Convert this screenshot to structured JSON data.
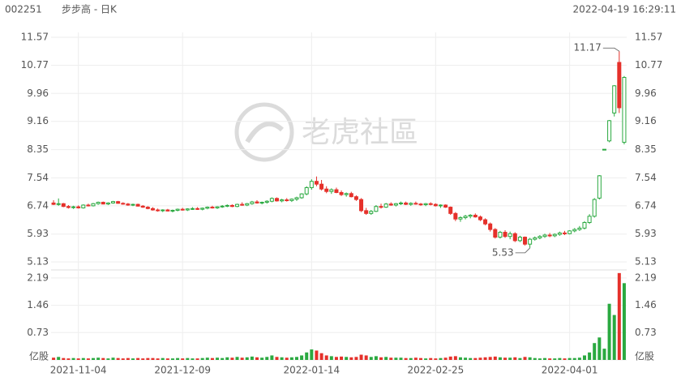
{
  "header": {
    "code": "002251",
    "name": "步步高 - 日K",
    "time": "2022-04-19 16:29:11"
  },
  "watermark": "老虎社區",
  "chart_data": {
    "type": "candlestick",
    "up_color": "#2aa940",
    "down_color": "#e5302a",
    "xlim": [
      -0.5,
      115.5
    ],
    "xticks": [
      {
        "value": 5,
        "label": "2021-11-04"
      },
      {
        "value": 26,
        "label": "2021-12-09"
      },
      {
        "value": 52,
        "label": "2022-01-14"
      },
      {
        "value": 77,
        "label": "2022-02-25"
      },
      {
        "value": 104,
        "label": "2022-04-01"
      }
    ],
    "ylim": [
      4.97,
      11.71
    ],
    "yticks": [
      5.13,
      5.93,
      6.74,
      7.54,
      8.35,
      9.16,
      9.96,
      10.77,
      11.57
    ],
    "high_label": "11.17",
    "low_label": "5.53",
    "ohlc": [
      [
        6.82,
        6.9,
        6.76,
        6.78
      ],
      [
        6.78,
        6.95,
        6.74,
        6.8
      ],
      [
        6.8,
        6.82,
        6.7,
        6.72
      ],
      [
        6.72,
        6.76,
        6.66,
        6.69
      ],
      [
        6.69,
        6.74,
        6.65,
        6.71
      ],
      [
        6.71,
        6.75,
        6.66,
        6.68
      ],
      [
        6.68,
        6.78,
        6.66,
        6.76
      ],
      [
        6.76,
        6.8,
        6.72,
        6.74
      ],
      [
        6.74,
        6.82,
        6.72,
        6.8
      ],
      [
        6.8,
        6.86,
        6.77,
        6.84
      ],
      [
        6.84,
        6.86,
        6.78,
        6.79
      ],
      [
        6.79,
        6.84,
        6.76,
        6.82
      ],
      [
        6.82,
        6.88,
        6.8,
        6.86
      ],
      [
        6.86,
        6.88,
        6.8,
        6.81
      ],
      [
        6.81,
        6.84,
        6.77,
        6.79
      ],
      [
        6.79,
        6.82,
        6.74,
        6.76
      ],
      [
        6.76,
        6.8,
        6.73,
        6.78
      ],
      [
        6.78,
        6.8,
        6.72,
        6.73
      ],
      [
        6.73,
        6.76,
        6.68,
        6.7
      ],
      [
        6.7,
        6.73,
        6.64,
        6.66
      ],
      [
        6.66,
        6.7,
        6.6,
        6.62
      ],
      [
        6.62,
        6.66,
        6.57,
        6.6
      ],
      [
        6.6,
        6.64,
        6.56,
        6.62
      ],
      [
        6.62,
        6.65,
        6.58,
        6.59
      ],
      [
        6.59,
        6.63,
        6.55,
        6.61
      ],
      [
        6.61,
        6.66,
        6.58,
        6.64
      ],
      [
        6.64,
        6.68,
        6.6,
        6.62
      ],
      [
        6.62,
        6.67,
        6.59,
        6.65
      ],
      [
        6.65,
        6.7,
        6.62,
        6.66
      ],
      [
        6.66,
        6.7,
        6.62,
        6.64
      ],
      [
        6.64,
        6.69,
        6.61,
        6.67
      ],
      [
        6.67,
        6.72,
        6.64,
        6.7
      ],
      [
        6.7,
        6.74,
        6.66,
        6.68
      ],
      [
        6.68,
        6.73,
        6.65,
        6.71
      ],
      [
        6.71,
        6.76,
        6.68,
        6.73
      ],
      [
        6.73,
        6.78,
        6.7,
        6.75
      ],
      [
        6.75,
        6.78,
        6.7,
        6.72
      ],
      [
        6.72,
        6.8,
        6.7,
        6.78
      ],
      [
        6.78,
        6.84,
        6.74,
        6.76
      ],
      [
        6.76,
        6.82,
        6.73,
        6.8
      ],
      [
        6.8,
        6.88,
        6.77,
        6.85
      ],
      [
        6.85,
        6.9,
        6.8,
        6.82
      ],
      [
        6.82,
        6.86,
        6.78,
        6.84
      ],
      [
        6.84,
        6.9,
        6.8,
        6.87
      ],
      [
        6.87,
        6.98,
        6.84,
        6.95
      ],
      [
        6.95,
        6.98,
        6.86,
        6.88
      ],
      [
        6.88,
        6.94,
        6.84,
        6.91
      ],
      [
        6.91,
        6.96,
        6.86,
        6.89
      ],
      [
        6.89,
        6.95,
        6.85,
        6.93
      ],
      [
        6.93,
        7.0,
        6.88,
        6.97
      ],
      [
        6.97,
        7.1,
        6.94,
        7.08
      ],
      [
        7.08,
        7.3,
        7.04,
        7.26
      ],
      [
        7.26,
        7.5,
        7.2,
        7.44
      ],
      [
        7.44,
        7.58,
        7.3,
        7.36
      ],
      [
        7.36,
        7.48,
        7.18,
        7.22
      ],
      [
        7.22,
        7.3,
        7.1,
        7.15
      ],
      [
        7.15,
        7.24,
        7.08,
        7.2
      ],
      [
        7.2,
        7.26,
        7.1,
        7.12
      ],
      [
        7.12,
        7.18,
        7.02,
        7.06
      ],
      [
        7.06,
        7.12,
        7.0,
        7.09
      ],
      [
        7.09,
        7.14,
        6.98,
        7.0
      ],
      [
        7.0,
        7.04,
        6.88,
        6.92
      ],
      [
        6.92,
        6.96,
        6.56,
        6.6
      ],
      [
        6.6,
        6.68,
        6.48,
        6.52
      ],
      [
        6.52,
        6.62,
        6.48,
        6.58
      ],
      [
        6.58,
        6.76,
        6.56,
        6.72
      ],
      [
        6.72,
        6.8,
        6.66,
        6.7
      ],
      [
        6.7,
        6.82,
        6.68,
        6.79
      ],
      [
        6.79,
        6.84,
        6.74,
        6.76
      ],
      [
        6.76,
        6.82,
        6.72,
        6.8
      ],
      [
        6.8,
        6.86,
        6.76,
        6.82
      ],
      [
        6.82,
        6.86,
        6.76,
        6.78
      ],
      [
        6.78,
        6.84,
        6.74,
        6.81
      ],
      [
        6.81,
        6.86,
        6.77,
        6.79
      ],
      [
        6.79,
        6.82,
        6.74,
        6.77
      ],
      [
        6.77,
        6.82,
        6.73,
        6.8
      ],
      [
        6.8,
        6.84,
        6.75,
        6.78
      ],
      [
        6.78,
        6.81,
        6.72,
        6.74
      ],
      [
        6.74,
        6.78,
        6.68,
        6.76
      ],
      [
        6.76,
        6.78,
        6.68,
        6.7
      ],
      [
        6.7,
        6.72,
        6.48,
        6.52
      ],
      [
        6.52,
        6.56,
        6.3,
        6.36
      ],
      [
        6.36,
        6.44,
        6.28,
        6.4
      ],
      [
        6.4,
        6.48,
        6.35,
        6.44
      ],
      [
        6.44,
        6.5,
        6.38,
        6.47
      ],
      [
        6.47,
        6.52,
        6.4,
        6.42
      ],
      [
        6.42,
        6.46,
        6.3,
        6.34
      ],
      [
        6.34,
        6.38,
        6.18,
        6.22
      ],
      [
        6.22,
        6.26,
        6.0,
        6.06
      ],
      [
        6.06,
        6.1,
        5.8,
        5.84
      ],
      [
        5.84,
        6.02,
        5.8,
        5.98
      ],
      [
        5.98,
        6.04,
        5.82,
        5.86
      ],
      [
        5.86,
        6.0,
        5.78,
        5.94
      ],
      [
        5.94,
        5.98,
        5.7,
        5.74
      ],
      [
        5.74,
        5.88,
        5.7,
        5.84
      ],
      [
        5.84,
        5.86,
        5.6,
        5.64
      ],
      [
        5.64,
        5.82,
        5.53,
        5.78
      ],
      [
        5.78,
        5.86,
        5.74,
        5.82
      ],
      [
        5.82,
        5.9,
        5.78,
        5.86
      ],
      [
        5.86,
        5.94,
        5.82,
        5.9
      ],
      [
        5.9,
        5.96,
        5.84,
        5.88
      ],
      [
        5.88,
        5.95,
        5.84,
        5.92
      ],
      [
        5.92,
        6.0,
        5.88,
        5.96
      ],
      [
        5.96,
        6.02,
        5.9,
        5.94
      ],
      [
        5.94,
        6.04,
        5.92,
        6.02
      ],
      [
        6.02,
        6.1,
        5.98,
        6.06
      ],
      [
        6.06,
        6.16,
        6.02,
        6.1
      ],
      [
        6.1,
        6.3,
        6.06,
        6.26
      ],
      [
        6.26,
        6.5,
        6.22,
        6.44
      ],
      [
        6.44,
        6.96,
        6.4,
        6.92
      ],
      [
        6.96,
        7.62,
        6.92,
        7.6
      ],
      [
        8.36,
        8.36,
        8.36,
        8.36
      ],
      [
        8.6,
        9.2,
        8.56,
        9.18
      ],
      [
        9.4,
        10.2,
        9.3,
        10.18
      ],
      [
        10.85,
        11.17,
        9.4,
        9.55
      ],
      [
        8.56,
        10.46,
        8.5,
        10.42
      ]
    ],
    "volume": [
      0.06,
      0.08,
      0.05,
      0.04,
      0.05,
      0.04,
      0.05,
      0.04,
      0.05,
      0.06,
      0.05,
      0.04,
      0.06,
      0.05,
      0.04,
      0.05,
      0.04,
      0.05,
      0.04,
      0.05,
      0.05,
      0.04,
      0.05,
      0.04,
      0.04,
      0.05,
      0.04,
      0.05,
      0.04,
      0.04,
      0.05,
      0.06,
      0.05,
      0.06,
      0.05,
      0.07,
      0.06,
      0.08,
      0.06,
      0.07,
      0.09,
      0.07,
      0.06,
      0.08,
      0.12,
      0.08,
      0.07,
      0.06,
      0.07,
      0.08,
      0.12,
      0.2,
      0.28,
      0.25,
      0.18,
      0.12,
      0.1,
      0.08,
      0.09,
      0.08,
      0.07,
      0.08,
      0.14,
      0.12,
      0.08,
      0.1,
      0.07,
      0.08,
      0.06,
      0.06,
      0.06,
      0.05,
      0.05,
      0.06,
      0.05,
      0.04,
      0.05,
      0.04,
      0.05,
      0.06,
      0.09,
      0.1,
      0.07,
      0.06,
      0.05,
      0.05,
      0.06,
      0.07,
      0.08,
      0.09,
      0.07,
      0.06,
      0.06,
      0.07,
      0.05,
      0.08,
      0.07,
      0.05,
      0.04,
      0.05,
      0.04,
      0.04,
      0.05,
      0.04,
      0.05,
      0.05,
      0.06,
      0.12,
      0.2,
      0.45,
      0.6,
      0.3,
      1.5,
      1.2,
      2.32,
      2.05
    ],
    "volume_ylim": [
      0,
      2.36
    ],
    "volume_yticks": [
      {
        "value": 0,
        "label": "亿股"
      },
      0.73,
      1.46,
      2.19
    ]
  }
}
